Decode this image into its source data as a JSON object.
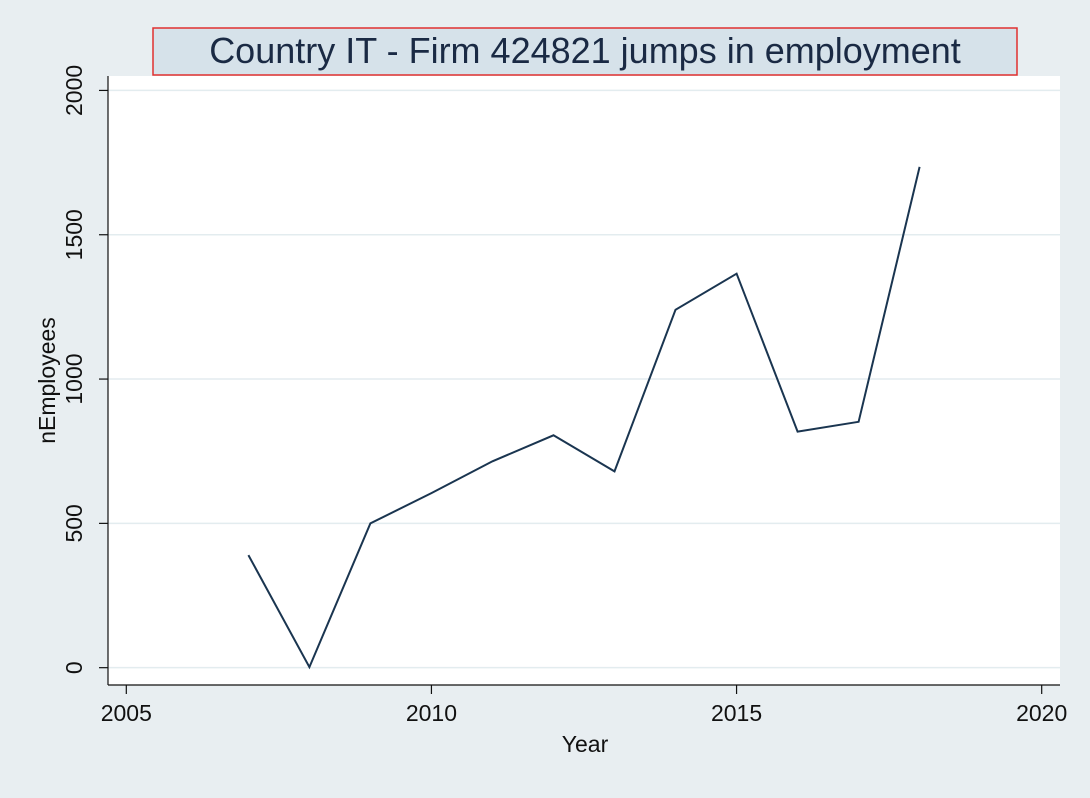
{
  "chart_data": {
    "type": "line",
    "title": "Country IT - Firm 424821  jumps in employment",
    "xlabel": "Year",
    "ylabel": "nEmployees",
    "xlim": [
      2004.7,
      2020.3
    ],
    "ylim": [
      -60,
      2050
    ],
    "xticks": [
      2005,
      2010,
      2015,
      2020
    ],
    "yticks": [
      0,
      500,
      1000,
      1500,
      2000
    ],
    "grid": "horizontal",
    "series": [
      {
        "color": "#1a3550",
        "x": [
          2007,
          2008,
          2009,
          2010,
          2011,
          2012,
          2013,
          2014,
          2015,
          2016,
          2017,
          2018
        ],
        "y": [
          390,
          2,
          500,
          605,
          715,
          805,
          680,
          1240,
          1365,
          818,
          852,
          1735
        ]
      }
    ],
    "colors": {
      "background": "#e8eef1",
      "plot_area": "#ffffff",
      "grid": "#e3ecef",
      "title_box": "#d6e2ea",
      "title_border": "#e03030",
      "line": "#1a3550"
    }
  }
}
